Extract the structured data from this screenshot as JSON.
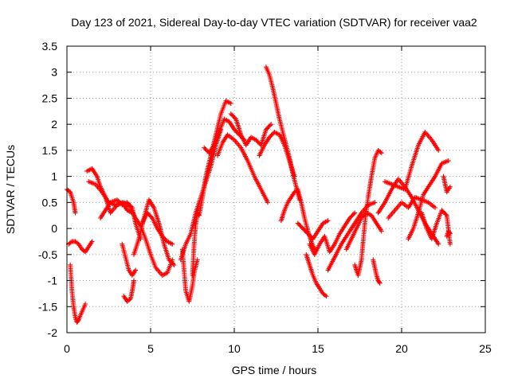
{
  "chart_data": {
    "type": "scatter",
    "title": "Day 123 of 2021, Sidereal Day-to-day VTEC variation (SDTVAR) for receiver vaa2",
    "xlabel": "GPS time / hours",
    "ylabel": "SDTVAR / TECUs",
    "xlim": [
      0,
      25
    ],
    "ylim": [
      -2,
      3.5
    ],
    "xticks": [
      0,
      5,
      10,
      15,
      20,
      25
    ],
    "xtick_labels": [
      "0",
      "5",
      "10",
      "15",
      "20",
      "25"
    ],
    "yticks": [
      -2,
      -1.5,
      -1,
      -0.5,
      0,
      0.5,
      1,
      1.5,
      2,
      2.5,
      3,
      3.5
    ],
    "ytick_labels": [
      "-2",
      "-1.5",
      "-1",
      "-0.5",
      "0",
      "0.5",
      "1",
      "1.5",
      "2",
      "2.5",
      "3",
      "3.5"
    ],
    "grid": true,
    "marker": "+",
    "marker_color": "#ff0000",
    "series": [
      {
        "name": "s1",
        "x": [
          0.0,
          0.2,
          0.4,
          0.5
        ],
        "y": [
          0.75,
          0.7,
          0.5,
          0.3
        ]
      },
      {
        "name": "s2",
        "x": [
          0.1,
          0.3,
          0.5,
          0.7,
          0.9,
          1.1,
          1.3,
          1.5
        ],
        "y": [
          -0.3,
          -0.25,
          -0.25,
          -0.3,
          -0.4,
          -0.45,
          -0.35,
          -0.25
        ]
      },
      {
        "name": "s3",
        "x": [
          0.2,
          0.3,
          0.4,
          0.5,
          0.6,
          0.7,
          0.9,
          1.1
        ],
        "y": [
          -0.7,
          -1.2,
          -1.5,
          -1.7,
          -1.8,
          -1.75,
          -1.6,
          -1.45
        ]
      },
      {
        "name": "s4",
        "x": [
          1.2,
          1.5,
          1.8,
          2.0,
          2.3,
          2.6,
          3.0,
          3.4,
          3.8,
          4.1,
          4.4,
          4.7,
          5.0,
          5.3,
          5.7,
          6.0,
          6.3
        ],
        "y": [
          1.1,
          1.15,
          1.0,
          0.8,
          0.6,
          0.3,
          0.45,
          0.5,
          0.4,
          0.2,
          0.05,
          -0.2,
          -0.5,
          -0.75,
          -0.9,
          -0.85,
          -0.6
        ]
      },
      {
        "name": "s5",
        "x": [
          1.3,
          1.7,
          2.1,
          2.5,
          2.9,
          3.3,
          3.6,
          3.9
        ],
        "y": [
          0.9,
          0.85,
          0.7,
          0.5,
          0.45,
          0.5,
          0.35,
          0.3
        ]
      },
      {
        "name": "s6",
        "x": [
          2.0,
          2.3,
          2.6,
          3.0,
          3.3,
          3.6,
          3.9,
          4.1,
          4.4
        ],
        "y": [
          0.2,
          0.35,
          0.5,
          0.55,
          0.45,
          0.5,
          0.4,
          0.1,
          -0.2
        ]
      },
      {
        "name": "s7",
        "x": [
          3.4,
          3.6,
          3.8,
          3.9,
          4.0
        ],
        "y": [
          -1.3,
          -1.4,
          -1.35,
          -1.2,
          -1.0
        ]
      },
      {
        "name": "s8",
        "x": [
          3.3,
          3.5,
          3.7,
          3.9,
          4.1
        ],
        "y": [
          -0.3,
          -0.55,
          -0.8,
          -0.9,
          -0.8
        ]
      },
      {
        "name": "s9",
        "x": [
          4.0,
          4.3,
          4.6,
          4.9,
          5.2,
          5.5,
          5.8,
          6.1,
          6.4
        ],
        "y": [
          -0.5,
          -0.2,
          0.2,
          0.55,
          0.4,
          0.1,
          -0.3,
          -0.6,
          -0.7
        ]
      },
      {
        "name": "s10",
        "x": [
          4.5,
          4.8,
          5.1,
          5.4,
          5.7,
          6.0,
          6.3
        ],
        "y": [
          0.1,
          0.3,
          0.2,
          0.0,
          -0.15,
          -0.25,
          -0.3
        ]
      },
      {
        "name": "s11",
        "x": [
          6.9,
          7.0,
          7.1,
          7.3,
          7.5,
          7.6,
          7.8
        ],
        "y": [
          -0.4,
          -0.8,
          -1.2,
          -1.4,
          -1.1,
          -0.85,
          -0.6
        ]
      },
      {
        "name": "s12",
        "x": [
          7.5,
          7.6,
          7.7,
          7.8,
          7.9,
          8.1,
          8.3,
          8.6,
          8.9,
          9.2,
          9.5,
          9.8
        ],
        "y": [
          -0.9,
          -0.3,
          0.1,
          0.3,
          0.25,
          0.6,
          1.0,
          1.4,
          1.8,
          2.2,
          2.45,
          2.4
        ]
      },
      {
        "name": "s13",
        "x": [
          6.8,
          7.1,
          7.4,
          7.7,
          8.0,
          8.3,
          8.6,
          8.9,
          9.2
        ],
        "y": [
          -0.6,
          -0.3,
          -0.1,
          0.3,
          0.6,
          0.9,
          1.2,
          1.6,
          1.9
        ]
      },
      {
        "name": "s14",
        "x": [
          8.2,
          8.5,
          8.8,
          9.1,
          9.4,
          9.7,
          10.0,
          10.3,
          10.6
        ],
        "y": [
          1.55,
          1.45,
          1.6,
          1.85,
          2.1,
          2.05,
          1.9,
          1.8,
          1.7
        ]
      },
      {
        "name": "s15",
        "x": [
          9.8,
          10.1,
          10.4,
          10.7,
          11.0,
          11.3,
          11.6,
          11.9,
          12.2
        ],
        "y": [
          2.2,
          2.1,
          1.8,
          1.6,
          1.75,
          1.7,
          1.6,
          1.9,
          2.0
        ]
      },
      {
        "name": "s16",
        "x": [
          9.0,
          9.3,
          9.6,
          10.0,
          10.4,
          10.8,
          11.2,
          11.6,
          12.0
        ],
        "y": [
          1.4,
          1.65,
          1.8,
          1.7,
          1.55,
          1.3,
          1.0,
          0.75,
          0.5
        ]
      },
      {
        "name": "s17",
        "x": [
          11.5,
          11.8,
          12.1,
          12.4,
          12.7,
          13.0,
          13.3,
          13.6
        ],
        "y": [
          1.4,
          1.6,
          1.75,
          1.85,
          1.8,
          1.6,
          1.3,
          1.0
        ]
      },
      {
        "name": "s18",
        "x": [
          11.9,
          12.1,
          12.3,
          12.5,
          12.7,
          12.9,
          13.1,
          13.3,
          13.5,
          13.7,
          13.9
        ],
        "y": [
          3.1,
          2.95,
          2.7,
          2.4,
          2.1,
          1.85,
          1.6,
          1.35,
          1.05,
          0.8,
          0.55
        ]
      },
      {
        "name": "s19",
        "x": [
          12.8,
          13.0,
          13.2,
          13.4,
          13.6,
          13.8,
          14.0,
          14.2,
          14.4,
          14.6,
          14.8
        ],
        "y": [
          0.15,
          0.35,
          0.5,
          0.6,
          0.7,
          0.75,
          0.5,
          0.2,
          -0.05,
          -0.25,
          -0.4
        ]
      },
      {
        "name": "s20",
        "x": [
          13.8,
          14.1,
          14.4,
          14.7,
          15.0,
          15.3,
          15.6
        ],
        "y": [
          0.1,
          0.0,
          -0.1,
          -0.2,
          -0.05,
          0.1,
          0.15
        ]
      },
      {
        "name": "s21",
        "x": [
          14.3,
          14.5,
          14.7,
          14.9,
          15.1,
          15.3,
          15.5
        ],
        "y": [
          -0.5,
          -0.7,
          -0.9,
          -1.05,
          -1.15,
          -1.25,
          -1.3
        ]
      },
      {
        "name": "s22",
        "x": [
          14.5,
          14.8,
          15.1,
          15.4,
          15.7,
          16.0,
          16.3,
          16.6,
          16.9,
          17.2
        ],
        "y": [
          -0.3,
          -0.5,
          -0.3,
          -0.15,
          -0.45,
          -0.3,
          -0.1,
          0.05,
          0.2,
          0.3
        ]
      },
      {
        "name": "s23",
        "x": [
          15.6,
          16.0,
          16.4,
          16.8,
          17.2,
          17.6,
          18.0,
          18.4
        ],
        "y": [
          -0.8,
          -0.55,
          -0.3,
          -0.1,
          0.1,
          0.3,
          0.45,
          0.5
        ]
      },
      {
        "name": "s24",
        "x": [
          16.7,
          17.0,
          17.3,
          17.6,
          17.9,
          18.2,
          18.5,
          18.8
        ],
        "y": [
          -0.4,
          -0.2,
          0.0,
          0.2,
          0.3,
          0.25,
          0.1,
          -0.05
        ]
      },
      {
        "name": "s25",
        "x": [
          17.2,
          17.4,
          17.6,
          17.8,
          18.0,
          18.2,
          18.4,
          18.6,
          18.8
        ],
        "y": [
          -0.7,
          -0.9,
          -0.6,
          0.1,
          0.6,
          1.0,
          1.35,
          1.5,
          1.45
        ]
      },
      {
        "name": "s26",
        "x": [
          18.3,
          18.4,
          18.5,
          18.6,
          18.7
        ],
        "y": [
          -0.6,
          -0.75,
          -0.9,
          -1.0,
          -1.05
        ]
      },
      {
        "name": "s27",
        "x": [
          18.6,
          19.0,
          19.4,
          19.8,
          20.2,
          20.6,
          21.0,
          21.4,
          21.8,
          22.2
        ],
        "y": [
          0.3,
          0.5,
          0.75,
          0.95,
          0.8,
          0.6,
          0.35,
          0.1,
          -0.1,
          -0.3
        ]
      },
      {
        "name": "s28",
        "x": [
          19.0,
          19.4,
          19.8,
          20.2,
          20.6,
          21.0,
          21.4,
          21.8,
          22.2
        ],
        "y": [
          0.9,
          0.85,
          0.8,
          0.75,
          1.2,
          1.6,
          1.85,
          1.7,
          1.5
        ]
      },
      {
        "name": "s29",
        "x": [
          19.2,
          19.6,
          20.0,
          20.4,
          20.8,
          21.2,
          21.6,
          22.0
        ],
        "y": [
          0.2,
          0.35,
          0.5,
          0.4,
          0.6,
          0.55,
          0.5,
          0.4
        ]
      },
      {
        "name": "s30",
        "x": [
          20.4,
          20.7,
          21.0,
          21.3,
          21.6,
          22.0,
          22.4,
          22.8
        ],
        "y": [
          -0.2,
          0.0,
          0.3,
          0.65,
          0.8,
          1.0,
          1.25,
          1.3
        ]
      },
      {
        "name": "s31",
        "x": [
          21.2,
          21.5,
          21.8,
          22.1,
          22.4,
          22.7,
          22.9
        ],
        "y": [
          0.3,
          0.0,
          -0.2,
          0.1,
          0.35,
          0.25,
          -0.3
        ]
      },
      {
        "name": "s32",
        "x": [
          22.5,
          22.7,
          22.9
        ],
        "y": [
          1.0,
          0.7,
          0.8
        ]
      },
      {
        "name": "s33",
        "x": [
          22.7,
          22.8,
          22.9
        ],
        "y": [
          -0.15,
          -0.05,
          -0.1
        ]
      }
    ]
  }
}
